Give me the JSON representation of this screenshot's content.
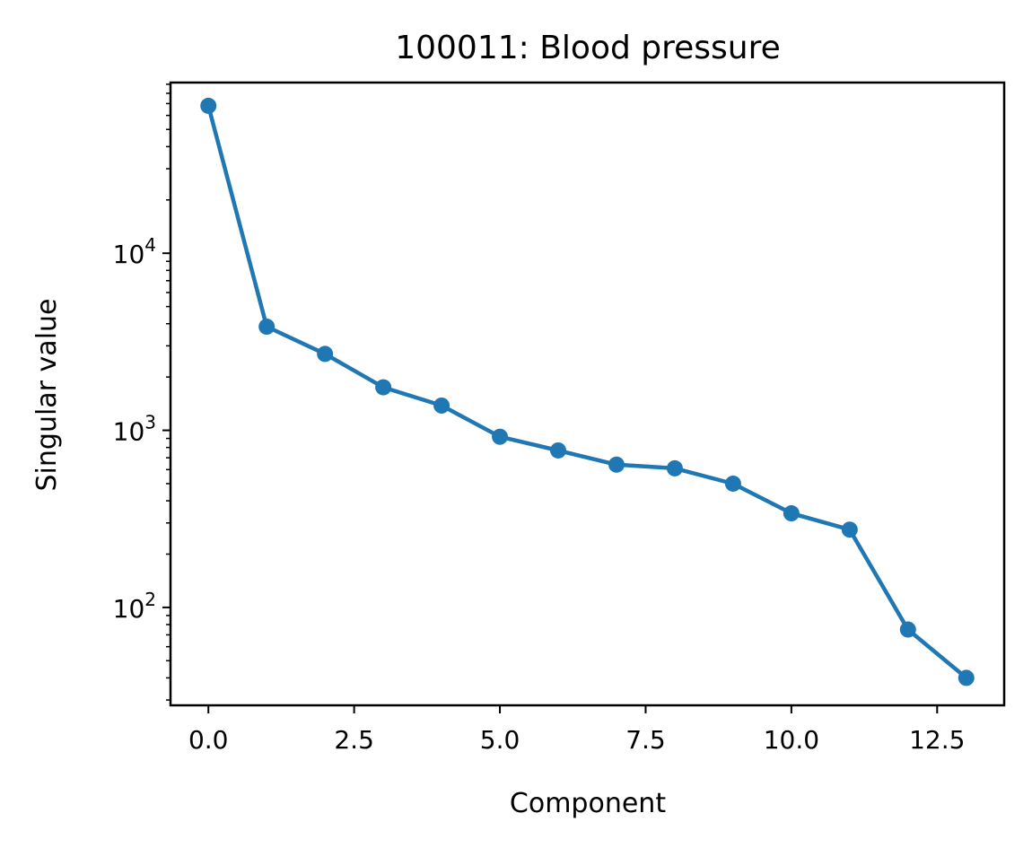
{
  "chart_data": {
    "type": "line",
    "title": "100011: Blood pressure",
    "xlabel": "Component",
    "ylabel": "Singular value",
    "yscale": "log",
    "xlim": [
      -0.65,
      13.65
    ],
    "ylim": [
      28,
      92000
    ],
    "x_ticks": [
      0.0,
      2.5,
      5.0,
      7.5,
      10.0,
      12.5
    ],
    "x_tick_labels": [
      "0.0",
      "2.5",
      "5.0",
      "7.5",
      "10.0",
      "12.5"
    ],
    "y_ticks": [
      100,
      1000,
      10000
    ],
    "y_tick_labels": [
      {
        "base": "10",
        "exp": "2"
      },
      {
        "base": "10",
        "exp": "3"
      },
      {
        "base": "10",
        "exp": "4"
      }
    ],
    "grid": false,
    "series": [
      {
        "color": "#1f77b4",
        "marker": "circle",
        "x": [
          0,
          1,
          2,
          3,
          4,
          5,
          6,
          7,
          8,
          9,
          10,
          11,
          12,
          13
        ],
        "y": [
          68000,
          3850,
          2700,
          1750,
          1380,
          920,
          770,
          640,
          610,
          500,
          340,
          275,
          75,
          40
        ]
      }
    ]
  }
}
